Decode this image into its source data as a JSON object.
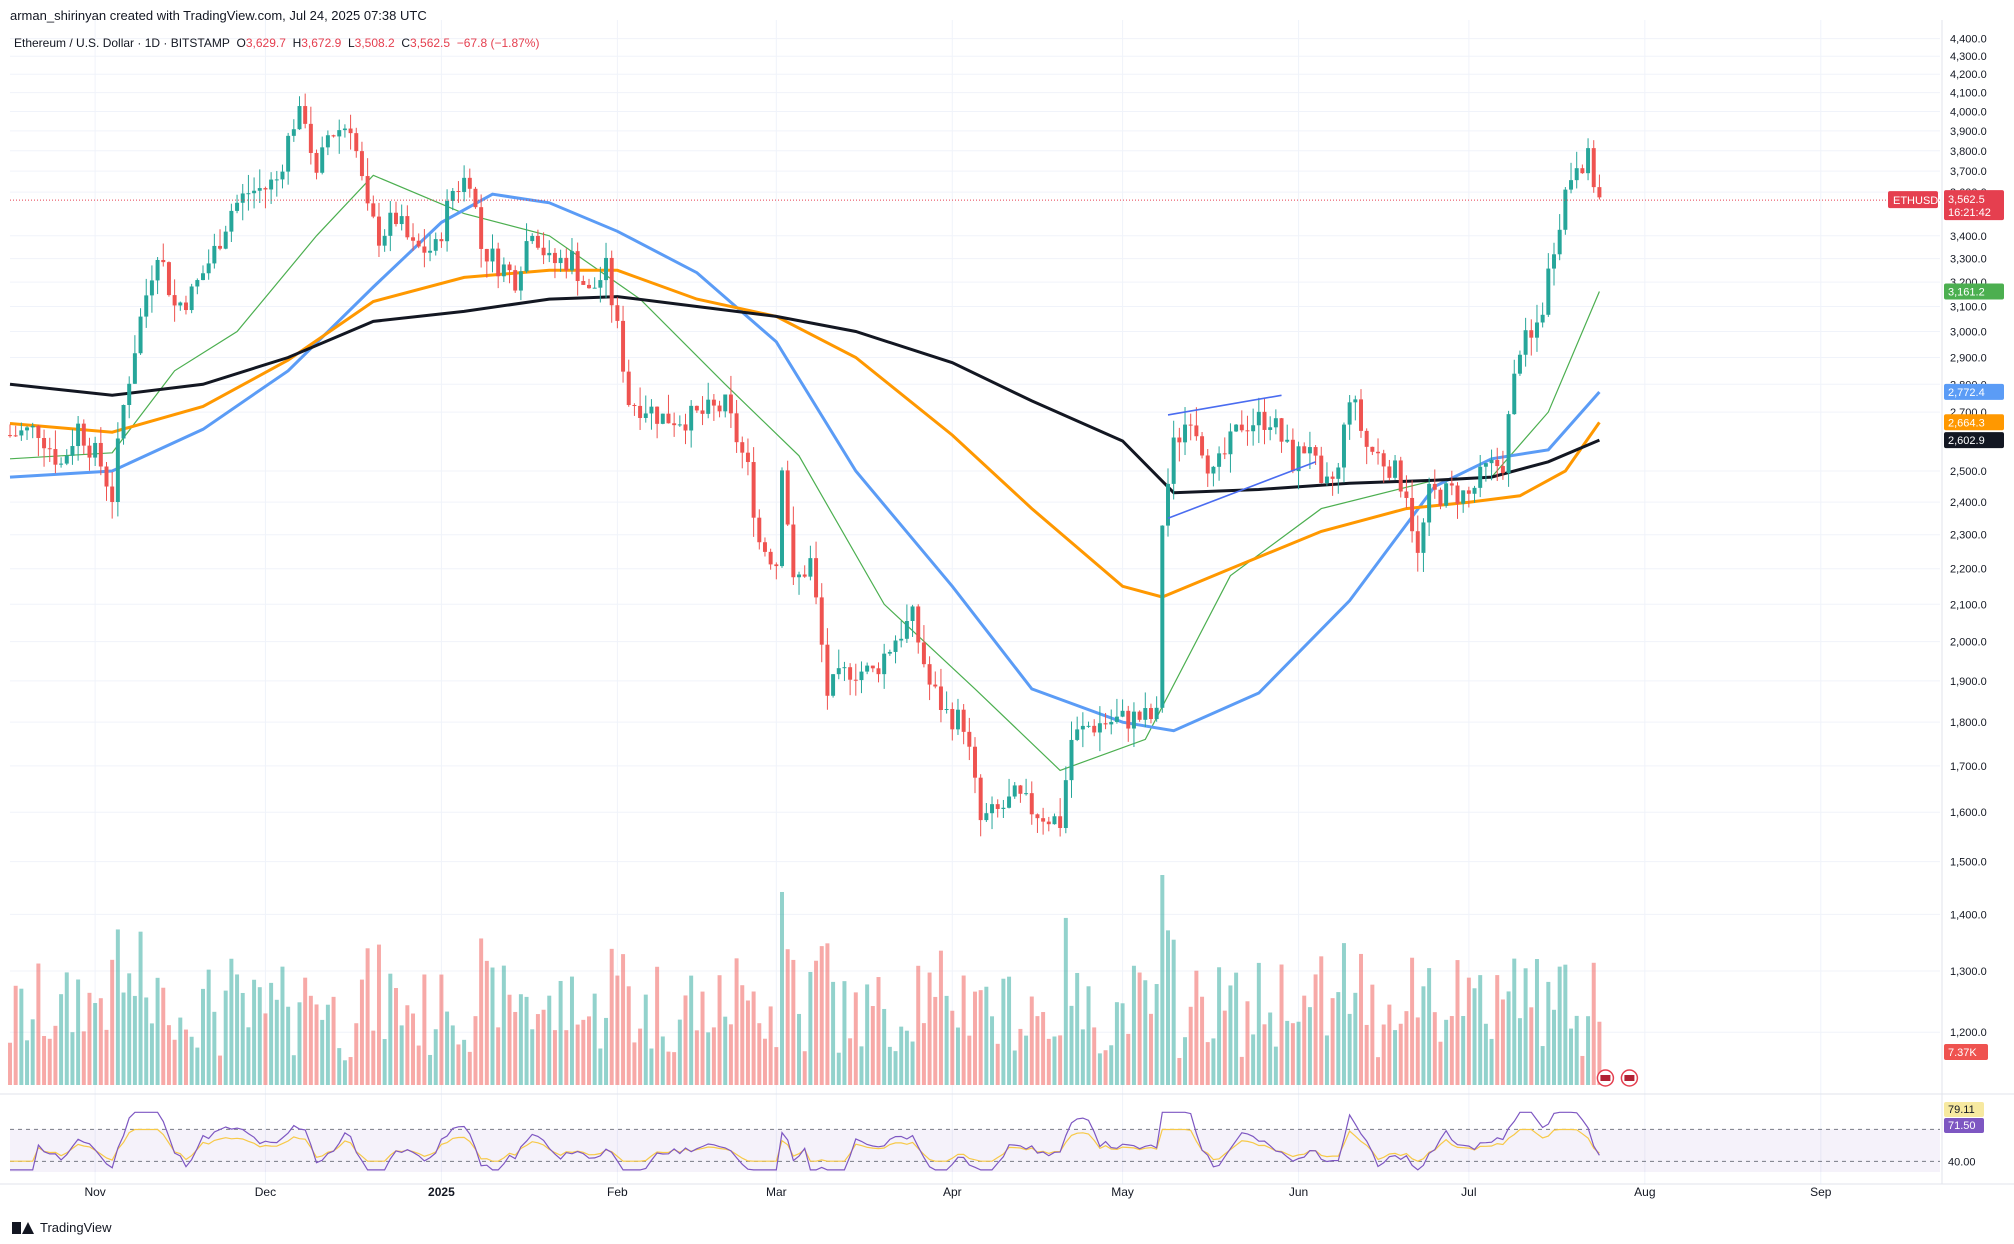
{
  "header": {
    "created_by": "arman_shirinyan created with TradingView.com, Jul 24, 2025 07:38 UTC",
    "symbol": "Ethereum / U.S. Dollar · 1D · BITSTAMP",
    "ohlc": {
      "o_label": "O",
      "o": "3,629.7",
      "h_label": "H",
      "h": "3,672.9",
      "l_label": "L",
      "l": "3,508.2",
      "c_label": "C",
      "c": "3,562.5",
      "change": "−67.8 (−1.87%)"
    }
  },
  "footer": {
    "brand": "TradingView"
  },
  "colors": {
    "up": "#26a69a",
    "down": "#ef5350",
    "ma_green": "#4caf50",
    "ma_blue": "#5b9cf6",
    "ma_orange": "#ff9800",
    "ma_black": "#131722",
    "price_line": "#e53f4f"
  },
  "chart_data": {
    "type": "candlestick",
    "symbol": "ETHUSD",
    "y_axis": {
      "scale": "log",
      "range": [
        1120,
        4450
      ],
      "tick_labels": [
        "4,400.0",
        "4,300.0",
        "4,200.0",
        "4,100.0",
        "4,000.0",
        "3,900.0",
        "3,800.0",
        "3,700.0",
        "3,600.0",
        "3,400.0",
        "3,300.0",
        "3,200.0",
        "3,100.0",
        "3,000.0",
        "2,900.0",
        "2,800.0",
        "2,700.0",
        "2,500.0",
        "2,400.0",
        "2,300.0",
        "2,200.0",
        "2,100.0",
        "2,000.0",
        "1,900.0",
        "1,800.0",
        "1,700.0",
        "1,600.0",
        "1,500.0",
        "1,400.0",
        "1,300.0",
        "1,200.0"
      ]
    },
    "x_axis": {
      "range": [
        "2024-10-17",
        "2025-09-22"
      ],
      "tick_labels": [
        {
          "label": "Nov",
          "date": "2024-11-01",
          "bold": false
        },
        {
          "label": "Dec",
          "date": "2024-12-01",
          "bold": false
        },
        {
          "label": "2025",
          "date": "2025-01-01",
          "bold": true
        },
        {
          "label": "Feb",
          "date": "2025-02-01",
          "bold": false
        },
        {
          "label": "Mar",
          "date": "2025-03-01",
          "bold": false
        },
        {
          "label": "Apr",
          "date": "2025-04-01",
          "bold": false
        },
        {
          "label": "May",
          "date": "2025-05-01",
          "bold": false
        },
        {
          "label": "Jun",
          "date": "2025-06-01",
          "bold": false
        },
        {
          "label": "Jul",
          "date": "2025-07-01",
          "bold": false
        },
        {
          "label": "Aug",
          "date": "2025-08-01",
          "bold": false
        },
        {
          "label": "Sep",
          "date": "2025-09-01",
          "bold": false
        }
      ]
    },
    "price_path": [
      [
        "2024-10-17",
        2620
      ],
      [
        "2024-10-22",
        2640
      ],
      [
        "2024-10-26",
        2520
      ],
      [
        "2024-10-29",
        2650
      ],
      [
        "2024-11-02",
        2520
      ],
      [
        "2024-11-04",
        2420
      ],
      [
        "2024-11-06",
        2720
      ],
      [
        "2024-11-09",
        3050
      ],
      [
        "2024-11-12",
        3350
      ],
      [
        "2024-11-15",
        3100
      ],
      [
        "2024-11-18",
        3150
      ],
      [
        "2024-11-22",
        3330
      ],
      [
        "2024-11-25",
        3520
      ],
      [
        "2024-11-28",
        3600
      ],
      [
        "2024-12-01",
        3620
      ],
      [
        "2024-12-03",
        3660
      ],
      [
        "2024-12-06",
        3950
      ],
      [
        "2024-12-08",
        3980
      ],
      [
        "2024-12-10",
        3650
      ],
      [
        "2024-12-12",
        3880
      ],
      [
        "2024-12-16",
        3940
      ],
      [
        "2024-12-19",
        3500
      ],
      [
        "2024-12-21",
        3400
      ],
      [
        "2024-12-24",
        3480
      ],
      [
        "2024-12-27",
        3340
      ],
      [
        "2024-12-31",
        3340
      ],
      [
        "2025-01-03",
        3610
      ],
      [
        "2025-01-06",
        3680
      ],
      [
        "2025-01-08",
        3350
      ],
      [
        "2025-01-11",
        3280
      ],
      [
        "2025-01-14",
        3220
      ],
      [
        "2025-01-17",
        3450
      ],
      [
        "2025-01-20",
        3280
      ],
      [
        "2025-01-24",
        3300
      ],
      [
        "2025-01-27",
        3150
      ],
      [
        "2025-01-30",
        3250
      ],
      [
        "2025-02-02",
        2880
      ],
      [
        "2025-02-03",
        2740
      ],
      [
        "2025-02-06",
        2720
      ],
      [
        "2025-02-09",
        2680
      ],
      [
        "2025-02-14",
        2680
      ],
      [
        "2025-02-20",
        2720
      ],
      [
        "2025-02-24",
        2500
      ],
      [
        "2025-02-26",
        2280
      ],
      [
        "2025-03-01",
        2220
      ],
      [
        "2025-03-02",
        2540
      ],
      [
        "2025-03-04",
        2150
      ],
      [
        "2025-03-07",
        2220
      ],
      [
        "2025-03-10",
        1870
      ],
      [
        "2025-03-14",
        1930
      ],
      [
        "2025-03-18",
        1920
      ],
      [
        "2025-03-22",
        2010
      ],
      [
        "2025-03-25",
        2060
      ],
      [
        "2025-03-28",
        1890
      ],
      [
        "2025-03-31",
        1820
      ],
      [
        "2025-04-03",
        1800
      ],
      [
        "2025-04-06",
        1580
      ],
      [
        "2025-04-09",
        1600
      ],
      [
        "2025-04-12",
        1630
      ],
      [
        "2025-04-16",
        1600
      ],
      [
        "2025-04-20",
        1580
      ],
      [
        "2025-04-22",
        1760
      ],
      [
        "2025-04-25",
        1790
      ],
      [
        "2025-04-28",
        1800
      ],
      [
        "2025-05-03",
        1810
      ],
      [
        "2025-05-07",
        1810
      ],
      [
        "2025-05-08",
        2340
      ],
      [
        "2025-05-10",
        2580
      ],
      [
        "2025-05-13",
        2700
      ],
      [
        "2025-05-17",
        2480
      ],
      [
        "2025-05-22",
        2660
      ],
      [
        "2025-05-27",
        2680
      ],
      [
        "2025-05-31",
        2530
      ],
      [
        "2025-06-03",
        2600
      ],
      [
        "2025-06-05",
        2420
      ],
      [
        "2025-06-08",
        2500
      ],
      [
        "2025-06-10",
        2770
      ],
      [
        "2025-06-13",
        2580
      ],
      [
        "2025-06-17",
        2520
      ],
      [
        "2025-06-20",
        2440
      ],
      [
        "2025-06-22",
        2230
      ],
      [
        "2025-06-24",
        2420
      ],
      [
        "2025-06-28",
        2430
      ],
      [
        "2025-07-01",
        2420
      ],
      [
        "2025-07-04",
        2500
      ],
      [
        "2025-07-07",
        2530
      ],
      [
        "2025-07-10",
        2950
      ],
      [
        "2025-07-12",
        2960
      ],
      [
        "2025-07-14",
        3100
      ],
      [
        "2025-07-16",
        3370
      ],
      [
        "2025-07-18",
        3600
      ],
      [
        "2025-07-20",
        3760
      ],
      [
        "2025-07-22",
        3750
      ],
      [
        "2025-07-24",
        3562
      ]
    ],
    "moving_averages": [
      {
        "label": "3,161.2",
        "color": "#4caf50",
        "value_last": 3161.2,
        "path": [
          [
            "2024-10-17",
            2540
          ],
          [
            "2024-11-04",
            2560
          ],
          [
            "2024-11-15",
            2850
          ],
          [
            "2024-11-26",
            3000
          ],
          [
            "2024-12-10",
            3400
          ],
          [
            "2024-12-20",
            3680
          ],
          [
            "2025-01-05",
            3500
          ],
          [
            "2025-01-20",
            3400
          ],
          [
            "2025-02-05",
            3130
          ],
          [
            "2025-02-20",
            2800
          ],
          [
            "2025-03-05",
            2550
          ],
          [
            "2025-03-20",
            2100
          ],
          [
            "2025-04-05",
            1880
          ],
          [
            "2025-04-20",
            1690
          ],
          [
            "2025-05-05",
            1760
          ],
          [
            "2025-05-20",
            2180
          ],
          [
            "2025-06-05",
            2380
          ],
          [
            "2025-06-25",
            2470
          ],
          [
            "2025-07-05",
            2480
          ],
          [
            "2025-07-15",
            2700
          ],
          [
            "2025-07-24",
            3161
          ]
        ]
      },
      {
        "label": "2,772.4",
        "color": "#5b9cf6",
        "value_last": 2772.4,
        "path": [
          [
            "2024-10-17",
            2480
          ],
          [
            "2024-11-04",
            2500
          ],
          [
            "2024-11-20",
            2640
          ],
          [
            "2024-12-05",
            2850
          ],
          [
            "2024-12-20",
            3180
          ],
          [
            "2025-01-01",
            3460
          ],
          [
            "2025-01-10",
            3590
          ],
          [
            "2025-01-20",
            3550
          ],
          [
            "2025-02-01",
            3420
          ],
          [
            "2025-02-15",
            3240
          ],
          [
            "2025-03-01",
            2960
          ],
          [
            "2025-03-15",
            2500
          ],
          [
            "2025-04-01",
            2150
          ],
          [
            "2025-04-15",
            1880
          ],
          [
            "2025-05-01",
            1800
          ],
          [
            "2025-05-10",
            1780
          ],
          [
            "2025-05-25",
            1870
          ],
          [
            "2025-06-10",
            2110
          ],
          [
            "2025-06-25",
            2450
          ],
          [
            "2025-07-05",
            2540
          ],
          [
            "2025-07-15",
            2570
          ],
          [
            "2025-07-24",
            2772
          ]
        ]
      },
      {
        "label": "2,664.3",
        "color": "#ff9800",
        "value_last": 2664.3,
        "path": [
          [
            "2024-10-17",
            2660
          ],
          [
            "2024-11-04",
            2630
          ],
          [
            "2024-11-20",
            2720
          ],
          [
            "2024-12-05",
            2890
          ],
          [
            "2024-12-20",
            3120
          ],
          [
            "2025-01-05",
            3220
          ],
          [
            "2025-01-20",
            3250
          ],
          [
            "2025-02-01",
            3250
          ],
          [
            "2025-02-15",
            3130
          ],
          [
            "2025-03-01",
            3060
          ],
          [
            "2025-03-15",
            2900
          ],
          [
            "2025-04-01",
            2620
          ],
          [
            "2025-04-15",
            2380
          ],
          [
            "2025-05-01",
            2150
          ],
          [
            "2025-05-08",
            2120
          ],
          [
            "2025-05-20",
            2200
          ],
          [
            "2025-06-05",
            2310
          ],
          [
            "2025-06-20",
            2380
          ],
          [
            "2025-07-01",
            2400
          ],
          [
            "2025-07-10",
            2420
          ],
          [
            "2025-07-18",
            2500
          ],
          [
            "2025-07-24",
            2664
          ]
        ]
      },
      {
        "label": "2,602.9",
        "color": "#131722",
        "value_last": 2602.9,
        "path": [
          [
            "2024-10-17",
            2800
          ],
          [
            "2024-11-04",
            2760
          ],
          [
            "2024-11-20",
            2800
          ],
          [
            "2024-12-05",
            2900
          ],
          [
            "2024-12-20",
            3040
          ],
          [
            "2025-01-05",
            3080
          ],
          [
            "2025-01-20",
            3130
          ],
          [
            "2025-02-01",
            3140
          ],
          [
            "2025-02-15",
            3100
          ],
          [
            "2025-03-01",
            3060
          ],
          [
            "2025-03-15",
            3000
          ],
          [
            "2025-04-01",
            2880
          ],
          [
            "2025-04-15",
            2740
          ],
          [
            "2025-05-01",
            2600
          ],
          [
            "2025-05-10",
            2430
          ],
          [
            "2025-05-25",
            2440
          ],
          [
            "2025-06-10",
            2460
          ],
          [
            "2025-06-25",
            2470
          ],
          [
            "2025-07-05",
            2480
          ],
          [
            "2025-07-15",
            2530
          ],
          [
            "2025-07-24",
            2603
          ]
        ]
      }
    ],
    "trendlines": [
      {
        "color": "#4a6cf0",
        "from": [
          "2025-05-09",
          2690
        ],
        "to": [
          "2025-05-29",
          2760
        ]
      },
      {
        "color": "#4a6cf0",
        "from": [
          "2025-05-09",
          2350
        ],
        "to": [
          "2025-06-04",
          2530
        ]
      }
    ],
    "last_price": {
      "symbol": "ETHUSD",
      "value": "3,562.5",
      "countdown": "16:21:42",
      "price": 3562.5
    },
    "volume": {
      "label": "7.37K"
    },
    "rsi": {
      "value": "71.50",
      "ma_value": "79.11",
      "levels": [
        70,
        40
      ],
      "level_label": "40.00"
    }
  }
}
